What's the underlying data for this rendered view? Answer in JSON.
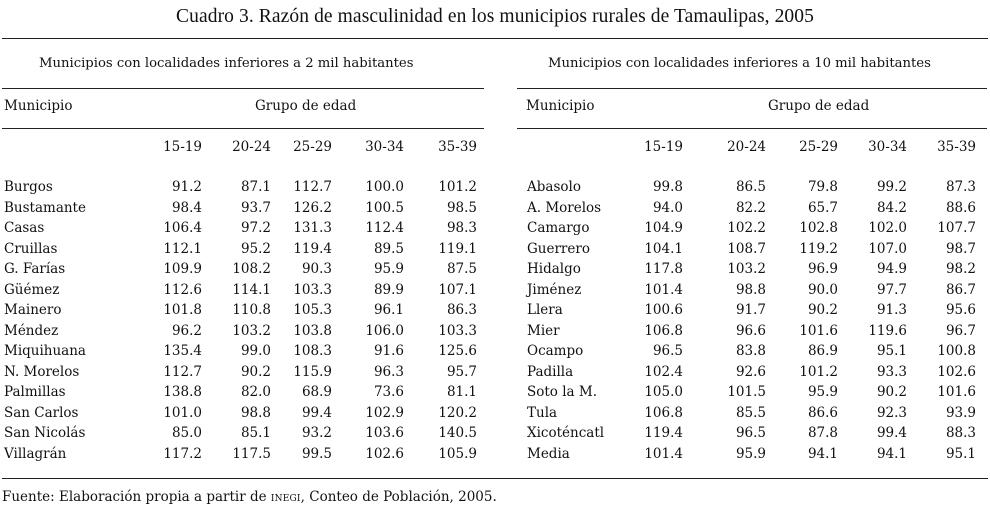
{
  "title": "Cuadro 3. Razón de masculinidad en los municipios rurales de Tamaulipas, 2005",
  "headers": {
    "municipio": "Municipio",
    "grupo_edad": "Grupo de edad",
    "columns": [
      "15-19",
      "20-24",
      "25-29",
      "30-34",
      "35-39"
    ]
  },
  "left_panel": {
    "title": "Municipios con localidades inferiores a 2 mil habitantes",
    "rows": [
      {
        "name": "Burgos",
        "values": [
          "91.2",
          "87.1",
          "112.7",
          "100.0",
          "101.2"
        ]
      },
      {
        "name": "Bustamante",
        "values": [
          "98.4",
          "93.7",
          "126.2",
          "100.5",
          "98.5"
        ]
      },
      {
        "name": "Casas",
        "values": [
          "106.4",
          "97.2",
          "131.3",
          "112.4",
          "98.3"
        ]
      },
      {
        "name": "Cruillas",
        "values": [
          "112.1",
          "95.2",
          "119.4",
          "89.5",
          "119.1"
        ]
      },
      {
        "name": "G. Farías",
        "values": [
          "109.9",
          "108.2",
          "90.3",
          "95.9",
          "87.5"
        ]
      },
      {
        "name": "Güémez",
        "values": [
          "112.6",
          "114.1",
          "103.3",
          "89.9",
          "107.1"
        ]
      },
      {
        "name": "Mainero",
        "values": [
          "101.8",
          "110.8",
          "105.3",
          "96.1",
          "86.3"
        ]
      },
      {
        "name": "Méndez",
        "values": [
          "96.2",
          "103.2",
          "103.8",
          "106.0",
          "103.3"
        ]
      },
      {
        "name": "Miquihuana",
        "values": [
          "135.4",
          "99.0",
          "108.3",
          "91.6",
          "125.6"
        ]
      },
      {
        "name": "N. Morelos",
        "values": [
          "112.7",
          "90.2",
          "115.9",
          "96.3",
          "95.7"
        ]
      },
      {
        "name": "Palmillas",
        "values": [
          "138.8",
          "82.0",
          "68.9",
          "73.6",
          "81.1"
        ]
      },
      {
        "name": "San Carlos",
        "values": [
          "101.0",
          "98.8",
          "99.4",
          "102.9",
          "120.2"
        ]
      },
      {
        "name": "San Nicolás",
        "values": [
          "85.0",
          "85.1",
          "93.2",
          "103.6",
          "140.5"
        ]
      },
      {
        "name": "Villagrán",
        "values": [
          "117.2",
          "117.5",
          "99.5",
          "102.6",
          "105.9"
        ]
      }
    ]
  },
  "right_panel": {
    "title": "Municipios con localidades inferiores a 10 mil habitantes",
    "rows": [
      {
        "name": "Abasolo",
        "values": [
          "99.8",
          "86.5",
          "79.8",
          "99.2",
          "87.3"
        ]
      },
      {
        "name": "A. Morelos",
        "values": [
          "94.0",
          "82.2",
          "65.7",
          "84.2",
          "88.6"
        ]
      },
      {
        "name": "Camargo",
        "values": [
          "104.9",
          "102.2",
          "102.8",
          "102.0",
          "107.7"
        ]
      },
      {
        "name": "Guerrero",
        "values": [
          "104.1",
          "108.7",
          "119.2",
          "107.0",
          "98.7"
        ]
      },
      {
        "name": "Hidalgo",
        "values": [
          "117.8",
          "103.2",
          "96.9",
          "94.9",
          "98.2"
        ]
      },
      {
        "name": "Jiménez",
        "values": [
          "101.4",
          "98.8",
          "90.0",
          "97.7",
          "86.7"
        ]
      },
      {
        "name": "Llera",
        "values": [
          "100.6",
          "91.7",
          "90.2",
          "91.3",
          "95.6"
        ]
      },
      {
        "name": "Mier",
        "values": [
          "106.8",
          "96.6",
          "101.6",
          "119.6",
          "96.7"
        ]
      },
      {
        "name": "Ocampo",
        "values": [
          "96.5",
          "83.8",
          "86.9",
          "95.1",
          "100.8"
        ]
      },
      {
        "name": "Padilla",
        "values": [
          "102.4",
          "92.6",
          "101.2",
          "93.3",
          "102.6"
        ]
      },
      {
        "name": "Soto la M.",
        "values": [
          "105.0",
          "101.5",
          "95.9",
          "90.2",
          "101.6"
        ]
      },
      {
        "name": "Tula",
        "values": [
          "106.8",
          "85.5",
          "86.6",
          "92.3",
          "93.9"
        ]
      },
      {
        "name": "Xicoténcatl",
        "values": [
          "119.4",
          "96.5",
          "87.8",
          "99.4",
          "88.3"
        ]
      },
      {
        "name": "Media",
        "values": [
          "101.4",
          "95.9",
          "94.1",
          "94.1",
          "95.1"
        ]
      }
    ]
  },
  "source": {
    "prefix": "Fuente: Elaboración propia a partir de ",
    "org": "inegi",
    "suffix": ", Conteo de Población, 2005."
  }
}
